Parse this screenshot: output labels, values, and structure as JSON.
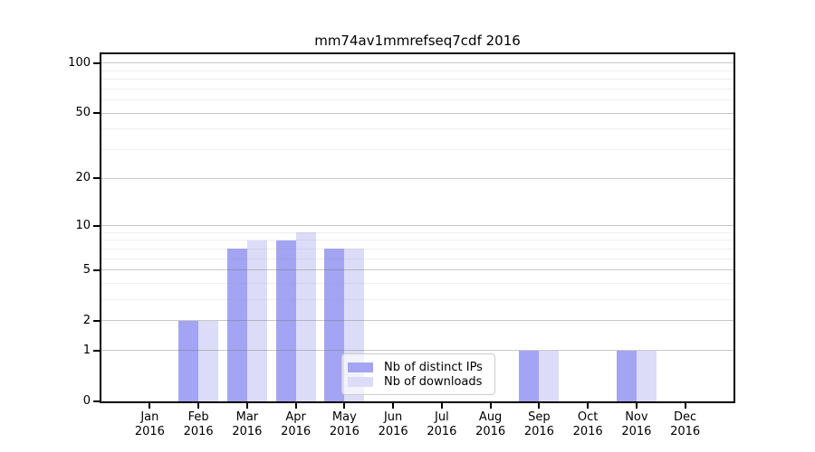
{
  "figure": {
    "title": "mm74av1mmrefseq7cdf 2016"
  },
  "chart_data": {
    "type": "bar",
    "title": "mm74av1mmrefseq7cdf 2016",
    "categories": [
      "Jan",
      "Feb",
      "Mar",
      "Apr",
      "May",
      "Jun",
      "Jul",
      "Aug",
      "Sep",
      "Oct",
      "Nov",
      "Dec"
    ],
    "x_sublabel": "2016",
    "series": [
      {
        "name": "Nb of distinct IPs",
        "color": "#a4a4f4",
        "values": [
          0,
          2,
          7,
          8,
          7,
          0,
          0,
          0,
          1,
          0,
          1,
          0
        ]
      },
      {
        "name": "Nb of downloads",
        "color": "#dcdcf8",
        "values": [
          0,
          2,
          8,
          9,
          7,
          0,
          0,
          0,
          1,
          0,
          1,
          0
        ]
      }
    ],
    "xlabel": "",
    "ylabel": "",
    "y_scale": "log1p",
    "ylim": [
      0,
      113
    ],
    "y_major_ticks": [
      0,
      1,
      2,
      5,
      10,
      20,
      50,
      100
    ],
    "y_minor_ticks": [
      3,
      4,
      6,
      7,
      8,
      9,
      30,
      40,
      60,
      70,
      80,
      90
    ],
    "grid": "horizontal, drawn over bars",
    "legend_position": "bottom-center"
  }
}
